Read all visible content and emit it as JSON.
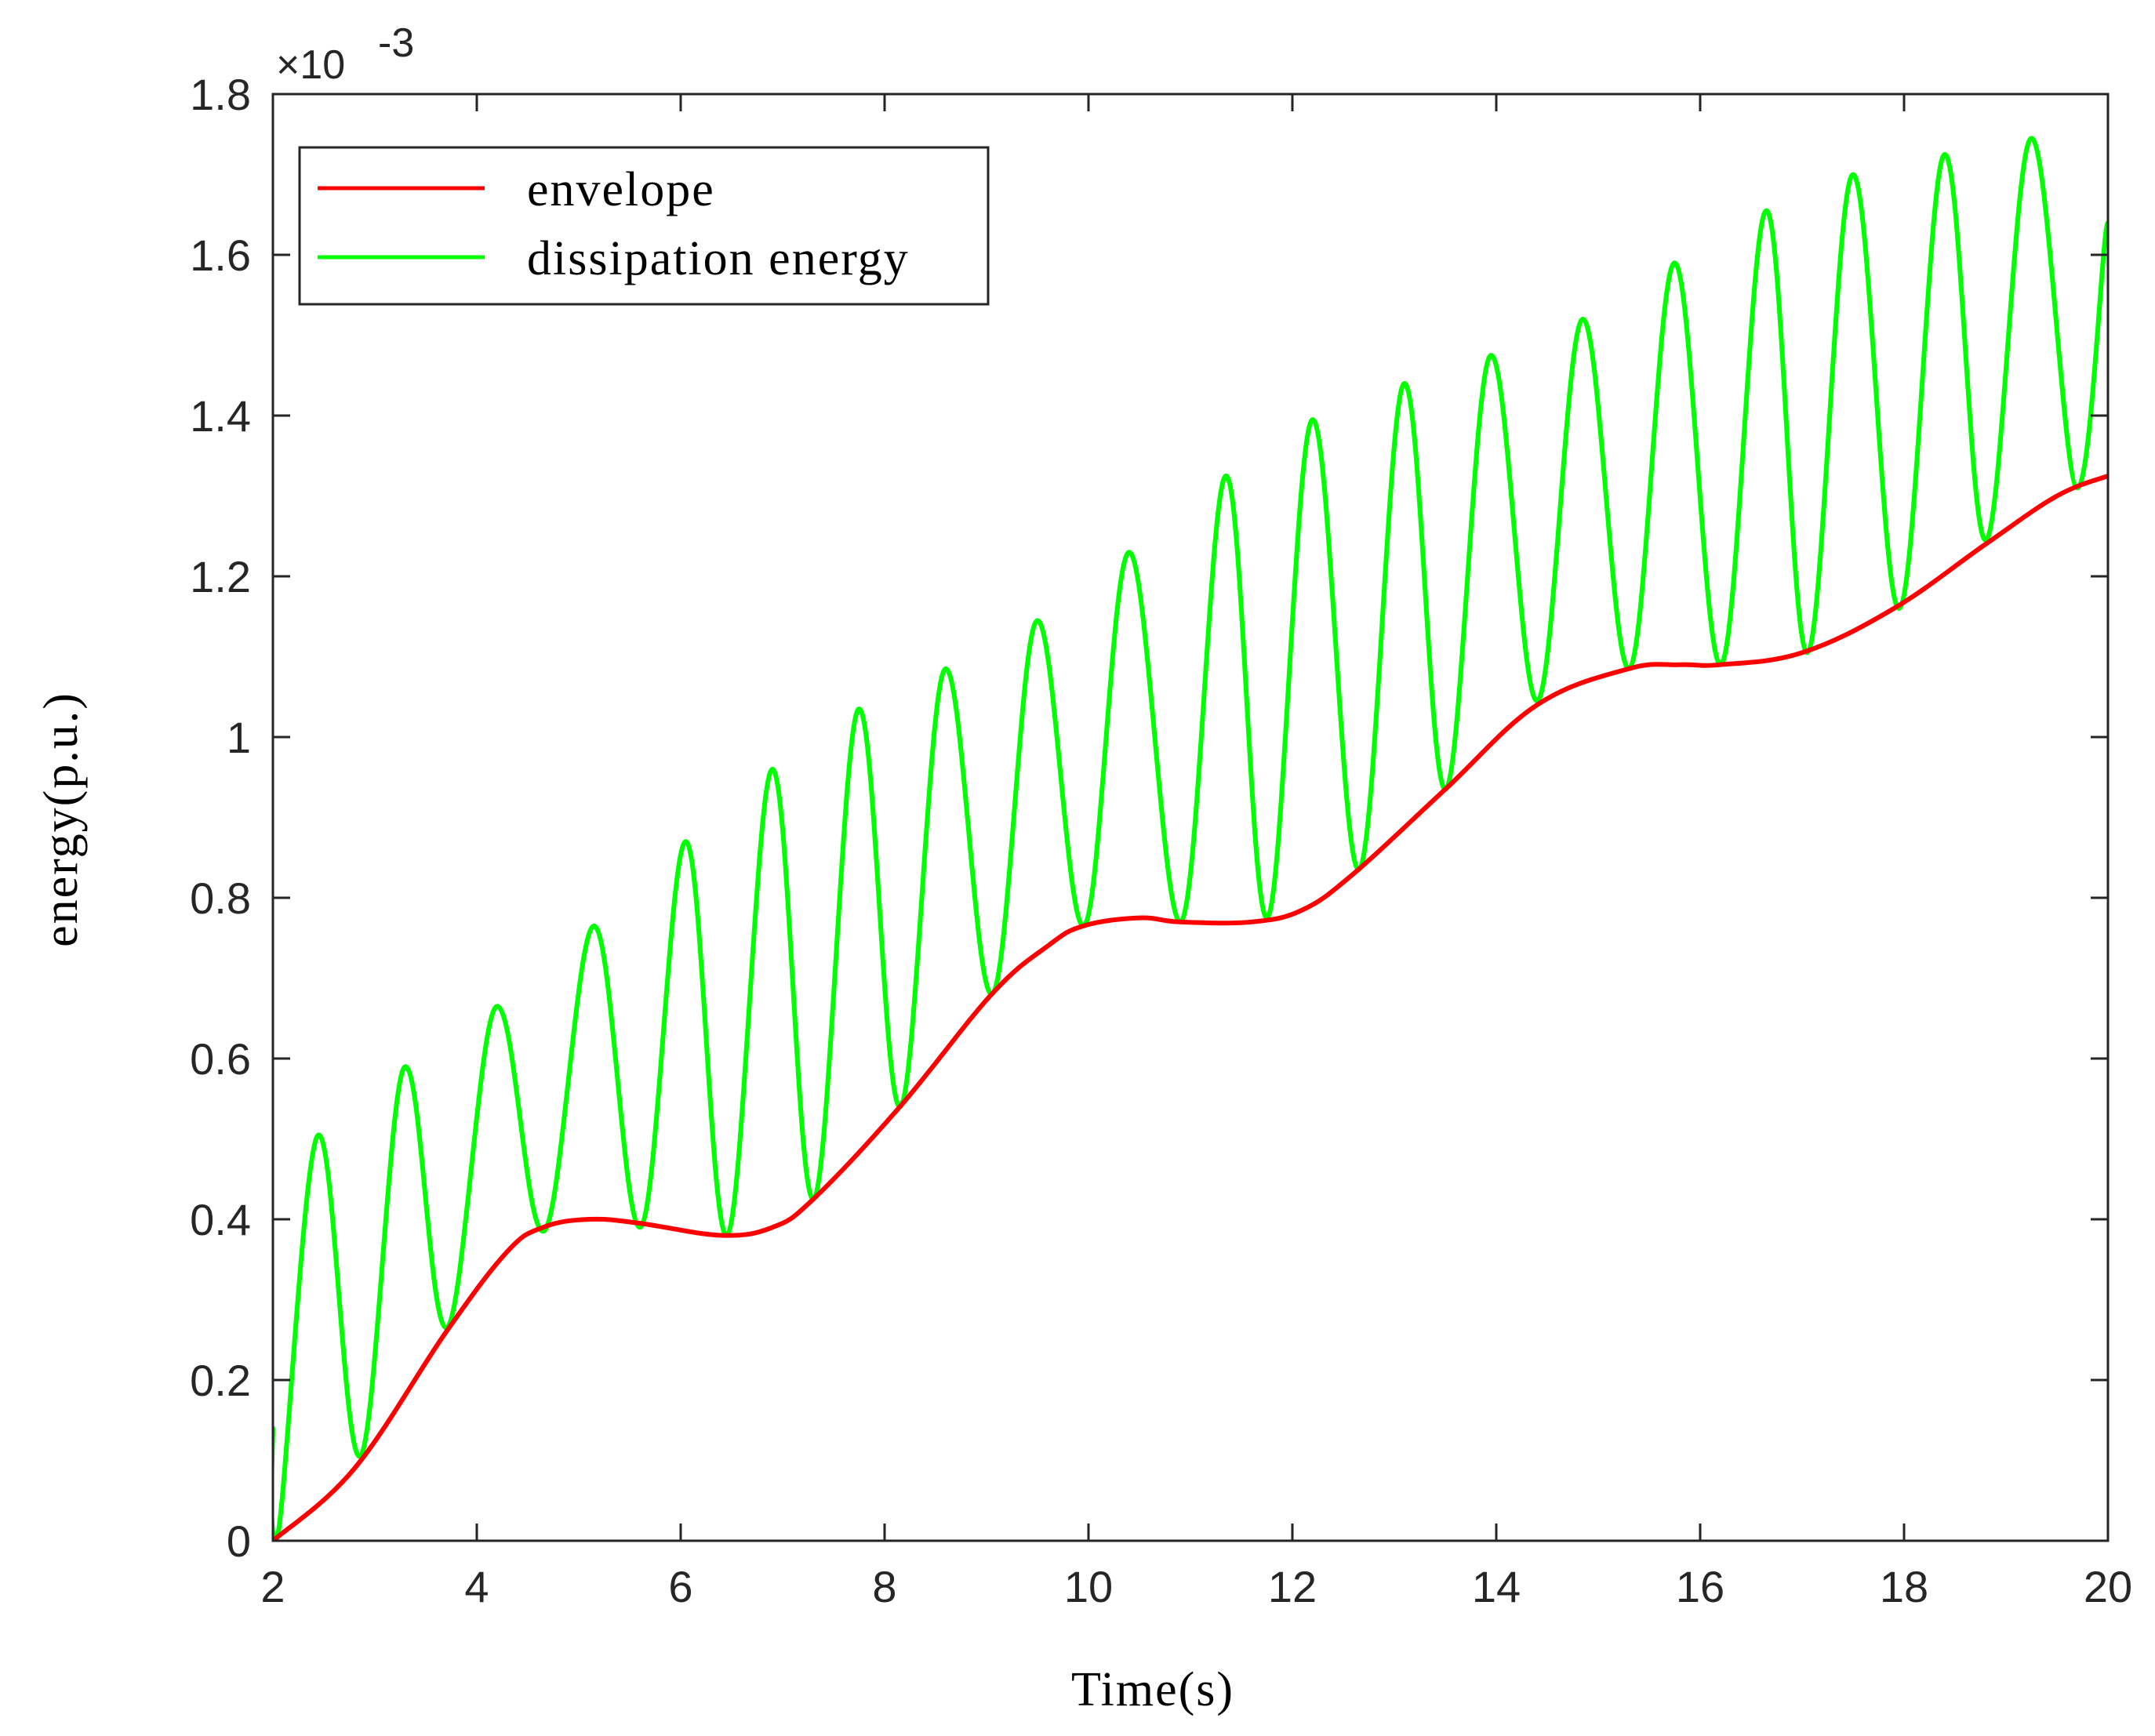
{
  "chart_data": {
    "type": "line",
    "title": "",
    "xlabel": "Time(s)",
    "ylabel": "energy(p.u.)",
    "y_exponent_label": "×10",
    "y_exponent_power": "-3",
    "xlim": [
      2,
      20
    ],
    "ylim": [
      0,
      1.8
    ],
    "xticks": [
      2,
      4,
      6,
      8,
      10,
      12,
      14,
      16,
      18,
      20
    ],
    "xtick_labels": [
      "2",
      "4",
      "6",
      "8",
      "10",
      "12",
      "14",
      "16",
      "18",
      "20"
    ],
    "yticks": [
      0,
      0.2,
      0.4,
      0.6,
      0.8,
      1.0,
      1.2,
      1.4,
      1.6,
      1.8
    ],
    "ytick_labels": [
      "0",
      "0.2",
      "0.4",
      "0.6",
      "0.8",
      "1",
      "1.2",
      "1.4",
      "1.6",
      "1.8"
    ],
    "grid": false,
    "legend_position": "top-left",
    "series": [
      {
        "name": "envelope",
        "color": "#ff0000",
        "x": [
          2.0,
          2.8,
          3.7,
          4.3,
          4.65,
          5.1,
          5.6,
          6.4,
          6.9,
          7.3,
          8.15,
          9.05,
          9.6,
          9.95,
          10.5,
          10.9,
          11.6,
          12.1,
          12.6,
          13.5,
          14.4,
          15.3,
          15.8,
          16.2,
          17.0,
          17.9,
          18.8,
          19.5,
          20.0
        ],
        "values": [
          0.0,
          0.09,
          0.26,
          0.36,
          0.39,
          0.4,
          0.395,
          0.38,
          0.39,
          0.425,
          0.54,
          0.68,
          0.74,
          0.765,
          0.775,
          0.77,
          0.77,
          0.785,
          0.83,
          0.935,
          1.04,
          1.085,
          1.09,
          1.09,
          1.105,
          1.16,
          1.24,
          1.3,
          1.325
        ]
      },
      {
        "name": "dissipation energy",
        "color": "#00ff00",
        "x": [
          2.0,
          2.03,
          2.45,
          2.85,
          3.3,
          3.7,
          4.2,
          4.65,
          5.15,
          5.6,
          6.05,
          6.45,
          6.9,
          7.3,
          7.75,
          8.15,
          8.6,
          9.05,
          9.5,
          9.95,
          10.4,
          10.9,
          11.35,
          11.75,
          12.2,
          12.65,
          13.1,
          13.5,
          13.95,
          14.4,
          14.85,
          15.3,
          15.75,
          16.2,
          16.65,
          17.05,
          17.5,
          17.95,
          18.4,
          18.8,
          19.25,
          19.7,
          20.0
        ],
        "values": [
          0.14,
          0.0,
          0.505,
          0.105,
          0.59,
          0.265,
          0.665,
          0.385,
          0.765,
          0.39,
          0.87,
          0.38,
          0.96,
          0.425,
          1.035,
          0.54,
          1.085,
          0.68,
          1.145,
          0.765,
          1.23,
          0.77,
          1.325,
          0.775,
          1.395,
          0.835,
          1.44,
          0.935,
          1.475,
          1.045,
          1.52,
          1.085,
          1.59,
          1.09,
          1.655,
          1.105,
          1.7,
          1.16,
          1.725,
          1.245,
          1.745,
          1.31,
          1.64
        ]
      }
    ]
  }
}
